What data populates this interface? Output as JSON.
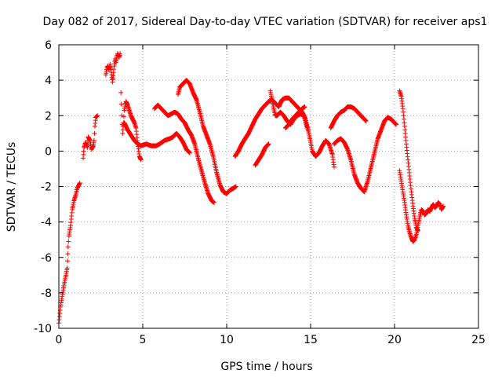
{
  "chart_data": {
    "type": "scatter",
    "title": "Day 082 of 2017, Sidereal Day-to-day VTEC variation (SDTVAR) for receiver aps1",
    "xlabel": "GPS time / hours",
    "ylabel": "SDTVAR / TECUs",
    "xlim": [
      0,
      25
    ],
    "ylim": [
      -10,
      6
    ],
    "xticks": [
      "0",
      "5",
      "10",
      "15",
      "20",
      "25"
    ],
    "yticks": [
      "6",
      "4",
      "2",
      "0",
      "-2",
      "-4",
      "-6",
      "-8",
      "-10"
    ],
    "grid": true,
    "marker": "+",
    "color": "#ff0000",
    "series": [
      {
        "name": "SDTVAR",
        "segments": [
          [
            [
              0.0,
              -9.7
            ],
            [
              0.1,
              -8.8
            ],
            [
              0.2,
              -8.2
            ],
            [
              0.3,
              -7.6
            ],
            [
              0.4,
              -7.1
            ],
            [
              0.5,
              -6.6
            ],
            [
              0.55,
              -5.4
            ],
            [
              0.6,
              -4.8
            ],
            [
              0.7,
              -4.2
            ],
            [
              0.8,
              -3.3
            ],
            [
              0.9,
              -2.8
            ],
            [
              1.0,
              -2.5
            ],
            [
              1.1,
              -2.1
            ],
            [
              1.25,
              -1.8
            ]
          ],
          [
            [
              1.45,
              -0.4
            ],
            [
              1.5,
              0.2
            ],
            [
              1.6,
              0.5
            ],
            [
              1.7,
              0.2
            ],
            [
              1.75,
              0.8
            ],
            [
              1.85,
              0.6
            ],
            [
              1.95,
              0.1
            ],
            [
              2.05,
              0.3
            ],
            [
              2.1,
              0.6
            ],
            [
              2.15,
              1.4
            ],
            [
              2.2,
              1.9
            ],
            [
              2.3,
              2.0
            ]
          ],
          [
            [
              2.8,
              4.3
            ],
            [
              2.85,
              4.6
            ],
            [
              2.9,
              4.8
            ],
            [
              3.0,
              4.6
            ],
            [
              3.05,
              4.9
            ],
            [
              3.1,
              4.6
            ],
            [
              3.15,
              4.3
            ],
            [
              3.2,
              3.9
            ],
            [
              3.3,
              4.8
            ],
            [
              3.35,
              5.2
            ],
            [
              3.4,
              5.0
            ],
            [
              3.5,
              5.5
            ],
            [
              3.6,
              5.3
            ],
            [
              3.65,
              5.5
            ]
          ],
          [
            [
              3.7,
              3.3
            ],
            [
              3.75,
              2.0
            ],
            [
              3.8,
              1.0
            ],
            [
              3.85,
              1.6
            ],
            [
              3.9,
              2.3
            ],
            [
              4.0,
              2.8
            ],
            [
              4.1,
              2.6
            ],
            [
              4.2,
              2.3
            ],
            [
              4.3,
              2.0
            ],
            [
              4.4,
              1.8
            ],
            [
              4.5,
              1.6
            ],
            [
              4.6,
              1.3
            ],
            [
              4.7,
              0.4
            ],
            [
              4.8,
              -0.3
            ],
            [
              4.9,
              -0.5
            ]
          ],
          [
            [
              3.9,
              1.6
            ],
            [
              4.1,
              1.2
            ],
            [
              4.3,
              0.9
            ],
            [
              4.5,
              0.6
            ],
            [
              4.7,
              0.4
            ],
            [
              4.9,
              0.3
            ],
            [
              5.2,
              0.4
            ],
            [
              5.5,
              0.3
            ],
            [
              5.8,
              0.3
            ],
            [
              6.0,
              0.4
            ],
            [
              6.3,
              0.6
            ],
            [
              6.6,
              0.7
            ],
            [
              6.8,
              0.8
            ],
            [
              7.0,
              1.0
            ],
            [
              7.2,
              0.8
            ],
            [
              7.4,
              0.5
            ],
            [
              7.6,
              0.1
            ],
            [
              7.8,
              -0.1
            ]
          ],
          [
            [
              5.7,
              2.4
            ],
            [
              5.9,
              2.6
            ],
            [
              6.1,
              2.4
            ],
            [
              6.3,
              2.2
            ],
            [
              6.5,
              2.0
            ],
            [
              6.7,
              2.1
            ],
            [
              6.9,
              2.2
            ],
            [
              7.1,
              2.1
            ],
            [
              7.3,
              1.8
            ],
            [
              7.5,
              1.6
            ],
            [
              7.7,
              1.2
            ],
            [
              7.9,
              0.9
            ],
            [
              8.1,
              0.4
            ],
            [
              8.3,
              -0.4
            ],
            [
              8.5,
              -1.1
            ],
            [
              8.7,
              -1.8
            ],
            [
              8.9,
              -2.4
            ],
            [
              9.1,
              -2.8
            ],
            [
              9.25,
              -2.9
            ]
          ],
          [
            [
              7.1,
              3.2
            ],
            [
              7.2,
              3.6
            ],
            [
              7.4,
              3.8
            ],
            [
              7.6,
              4.0
            ],
            [
              7.8,
              3.8
            ],
            [
              8.0,
              3.3
            ],
            [
              8.2,
              2.9
            ],
            [
              8.4,
              2.2
            ],
            [
              8.6,
              1.4
            ],
            [
              8.8,
              0.9
            ],
            [
              9.0,
              0.4
            ],
            [
              9.2,
              -0.3
            ],
            [
              9.4,
              -1.2
            ],
            [
              9.6,
              -1.9
            ],
            [
              9.8,
              -2.3
            ],
            [
              10.0,
              -2.4
            ],
            [
              10.2,
              -2.2
            ],
            [
              10.4,
              -2.1
            ],
            [
              10.55,
              -2.0
            ]
          ],
          [
            [
              10.5,
              -0.3
            ],
            [
              10.7,
              0.0
            ],
            [
              10.9,
              0.4
            ],
            [
              11.1,
              0.7
            ],
            [
              11.3,
              1.0
            ],
            [
              11.5,
              1.4
            ],
            [
              11.7,
              1.8
            ],
            [
              11.9,
              2.1
            ],
            [
              12.1,
              2.4
            ],
            [
              12.3,
              2.6
            ],
            [
              12.5,
              2.8
            ],
            [
              12.7,
              2.9
            ],
            [
              12.9,
              2.7
            ],
            [
              13.1,
              2.5
            ],
            [
              13.3,
              2.9
            ],
            [
              13.5,
              3.0
            ],
            [
              13.7,
              3.0
            ],
            [
              13.9,
              2.8
            ],
            [
              14.1,
              2.6
            ],
            [
              14.3,
              2.4
            ],
            [
              14.5,
              2.2
            ],
            [
              14.7,
              1.8
            ],
            [
              14.9,
              1.0
            ],
            [
              15.1,
              0.0
            ],
            [
              15.3,
              -0.3
            ],
            [
              15.5,
              -0.1
            ],
            [
              15.7,
              0.3
            ],
            [
              15.9,
              0.6
            ],
            [
              16.1,
              0.4
            ],
            [
              16.3,
              -0.2
            ],
            [
              16.4,
              -0.9
            ]
          ],
          [
            [
              11.7,
              -0.8
            ],
            [
              11.9,
              -0.5
            ],
            [
              12.1,
              -0.2
            ],
            [
              12.3,
              0.2
            ],
            [
              12.5,
              0.4
            ]
          ],
          [
            [
              12.6,
              3.4
            ],
            [
              12.7,
              2.9
            ],
            [
              12.8,
              2.4
            ],
            [
              12.9,
              2.0
            ],
            [
              13.0,
              2.0
            ],
            [
              13.2,
              2.2
            ],
            [
              13.4,
              2.0
            ],
            [
              13.6,
              1.7
            ],
            [
              13.8,
              1.5
            ],
            [
              14.0,
              1.8
            ],
            [
              14.2,
              2.0
            ],
            [
              14.4,
              2.1
            ],
            [
              14.6,
              2.0
            ],
            [
              14.8,
              1.3
            ]
          ],
          [
            [
              13.5,
              1.3
            ],
            [
              13.7,
              1.5
            ],
            [
              13.9,
              1.8
            ],
            [
              14.1,
              2.0
            ],
            [
              14.3,
              2.2
            ],
            [
              14.5,
              2.4
            ],
            [
              14.65,
              2.5
            ]
          ],
          [
            [
              16.2,
              1.3
            ],
            [
              16.4,
              1.7
            ],
            [
              16.6,
              2.0
            ],
            [
              16.8,
              2.2
            ],
            [
              17.0,
              2.3
            ],
            [
              17.2,
              2.5
            ],
            [
              17.4,
              2.5
            ],
            [
              17.6,
              2.4
            ],
            [
              17.8,
              2.2
            ],
            [
              18.0,
              2.0
            ],
            [
              18.2,
              1.8
            ],
            [
              18.3,
              1.7
            ]
          ],
          [
            [
              16.4,
              0.4
            ],
            [
              16.6,
              0.6
            ],
            [
              16.8,
              0.7
            ],
            [
              17.0,
              0.5
            ],
            [
              17.2,
              0.1
            ],
            [
              17.4,
              -0.5
            ],
            [
              17.6,
              -1.3
            ],
            [
              17.8,
              -1.8
            ],
            [
              18.0,
              -2.1
            ],
            [
              18.2,
              -2.3
            ],
            [
              18.4,
              -1.7
            ],
            [
              18.6,
              -0.9
            ],
            [
              18.8,
              -0.1
            ],
            [
              19.0,
              0.7
            ],
            [
              19.2,
              1.2
            ],
            [
              19.4,
              1.7
            ],
            [
              19.6,
              1.9
            ],
            [
              19.8,
              1.8
            ],
            [
              20.0,
              1.6
            ],
            [
              20.1,
              1.5
            ]
          ],
          [
            [
              20.3,
              3.4
            ],
            [
              20.4,
              3.1
            ],
            [
              20.5,
              2.4
            ],
            [
              20.6,
              1.4
            ],
            [
              20.7,
              0.4
            ],
            [
              20.8,
              -0.5
            ],
            [
              20.9,
              -1.4
            ],
            [
              21.0,
              -2.3
            ],
            [
              21.1,
              -3.1
            ],
            [
              21.2,
              -3.8
            ],
            [
              21.3,
              -4.3
            ],
            [
              21.4,
              -4.5
            ]
          ],
          [
            [
              20.3,
              -1.1
            ],
            [
              20.4,
              -1.7
            ],
            [
              20.5,
              -2.3
            ],
            [
              20.6,
              -2.9
            ],
            [
              20.7,
              -3.6
            ],
            [
              20.8,
              -4.2
            ],
            [
              20.9,
              -4.6
            ],
            [
              21.0,
              -4.9
            ],
            [
              21.1,
              -5.1
            ],
            [
              21.2,
              -5.0
            ],
            [
              21.3,
              -4.7
            ],
            [
              21.4,
              -4.2
            ],
            [
              21.5,
              -3.7
            ],
            [
              21.6,
              -3.3
            ],
            [
              21.7,
              -3.4
            ],
            [
              21.8,
              -3.6
            ],
            [
              21.9,
              -3.5
            ],
            [
              22.0,
              -3.3
            ],
            [
              22.1,
              -3.4
            ],
            [
              22.2,
              -3.2
            ],
            [
              22.3,
              -3.0
            ],
            [
              22.4,
              -3.2
            ],
            [
              22.5,
              -3.1
            ],
            [
              22.6,
              -2.9
            ],
            [
              22.7,
              -3.0
            ],
            [
              22.8,
              -3.3
            ],
            [
              22.9,
              -3.1
            ]
          ]
        ]
      }
    ]
  }
}
